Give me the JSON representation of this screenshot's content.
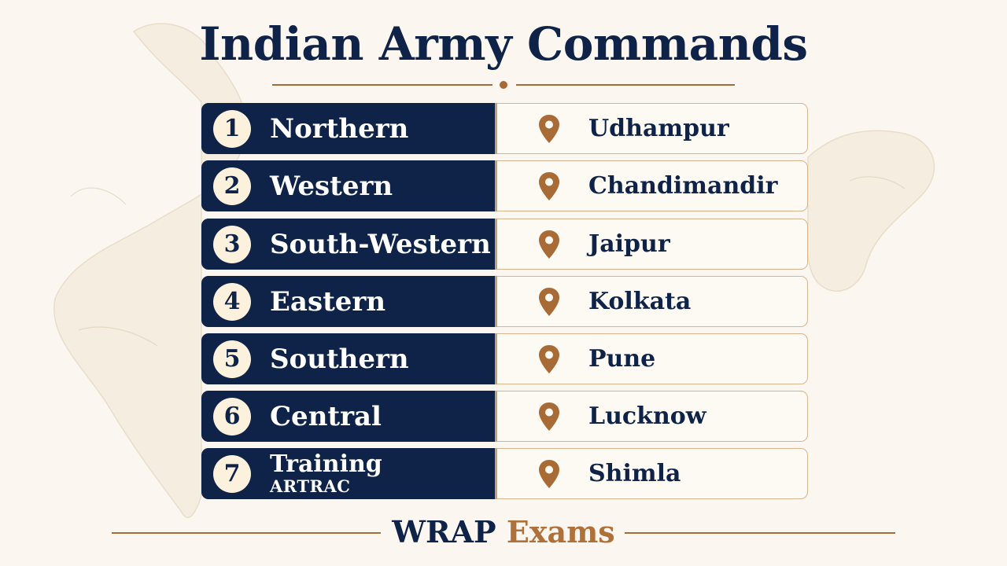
{
  "title": "Indian Army Commands",
  "commands": [
    {
      "number": "1",
      "name": "Northern",
      "location": "Udhampur"
    },
    {
      "number": "2",
      "name": "Western",
      "location": "Chandimandir"
    },
    {
      "number": "3",
      "name": "South-Western",
      "location": "Jaipur"
    },
    {
      "number": "4",
      "name": "Eastern",
      "location": "Kolkata"
    },
    {
      "number": "5",
      "name": "Southern",
      "location": "Pune"
    },
    {
      "number": "6",
      "name": "Central",
      "location": "Lucknow"
    },
    {
      "number": "7",
      "name": "Training",
      "subname": "ARTRAC",
      "location": "Shimla"
    }
  ],
  "footer": {
    "brand_part1": "WRAP",
    "brand_part2": "Exams"
  },
  "colors": {
    "navy": "#0f2349",
    "accent": "#a86b35",
    "background": "#fbf7f0"
  },
  "icons": {
    "location": "map-pin-icon"
  }
}
